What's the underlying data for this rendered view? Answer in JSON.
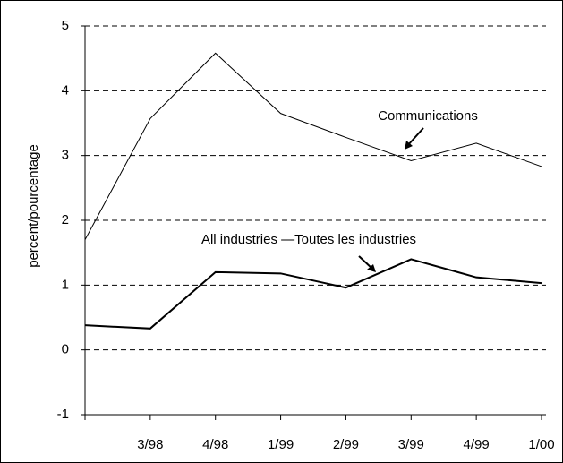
{
  "chart_data": {
    "type": "line",
    "ylabel": "percent/pourcentage",
    "categories": [
      null,
      "3/98",
      "4/98",
      "1/99",
      "2/99",
      "3/99",
      "4/99",
      "1/00"
    ],
    "series": [
      {
        "name": "Communications",
        "color": "#000000",
        "values": [
          1.7,
          3.57,
          4.58,
          3.65,
          3.28,
          2.92,
          3.19,
          2.83
        ]
      },
      {
        "name": "All industries —Toutes les industries",
        "color": "#000000",
        "values": [
          0.38,
          0.33,
          1.2,
          1.18,
          0.96,
          1.4,
          1.12,
          1.03
        ]
      }
    ],
    "ylim": [
      -1,
      5
    ],
    "yticks": [
      -1,
      0,
      1,
      2,
      3,
      4,
      5
    ],
    "grid": true
  }
}
